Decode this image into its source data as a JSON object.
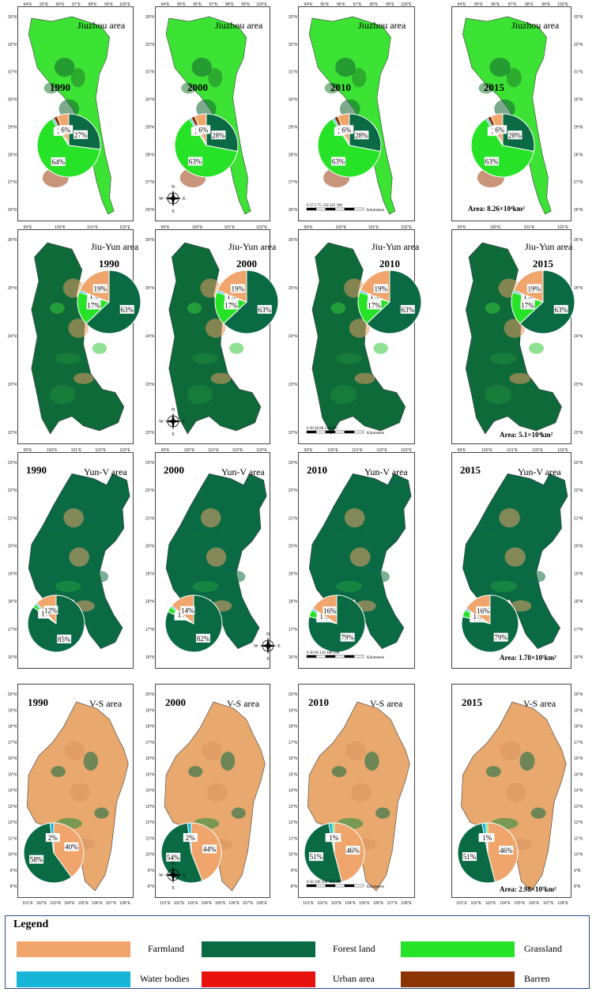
{
  "colors": {
    "Farmland": "#efa56b",
    "Forest land": "#096a44",
    "Grassland": "#27e327",
    "Water bodies": "#17b5d7",
    "Urban area": "#e8130f",
    "Barren": "#8b3505"
  },
  "regions": [
    {
      "name": "Jiuzhou area",
      "area_text": "Area: 8.26×10⁴km²",
      "lon_ticks": [
        "94°E",
        "95°E",
        "96°E",
        "97°E",
        "98°E",
        "99°E",
        "100°E"
      ],
      "lat_ticks": [
        "33°N",
        "32°N",
        "31°N",
        "30°N",
        "29°N",
        "28°N",
        "27°N",
        "26°N"
      ],
      "bottom_ticks": [],
      "map_colors": [
        "#3ce334",
        "#1f7d2a",
        "#12632f",
        "#9b3d0d"
      ],
      "panels": [
        {
          "year": "1990",
          "slices": [
            {
              "class": "Forest land",
              "pct": 27,
              "label": "27%"
            },
            {
              "class": "Grassland",
              "pct": 64,
              "label": "64%"
            },
            {
              "class": "Water bodies",
              "pct": 1,
              "label": "1%"
            },
            {
              "class": "Urban area",
              "pct": 0,
              "label": ""
            },
            {
              "class": "Barren",
              "pct": 2,
              "label": "2%"
            },
            {
              "class": "Farmland",
              "pct": 6,
              "label": "6%"
            }
          ]
        },
        {
          "year": "2000",
          "slices": [
            {
              "class": "Forest land",
              "pct": 28,
              "label": "28%"
            },
            {
              "class": "Grassland",
              "pct": 63,
              "label": "63%"
            },
            {
              "class": "Water bodies",
              "pct": 1,
              "label": "1%"
            },
            {
              "class": "Urban area",
              "pct": 0,
              "label": ""
            },
            {
              "class": "Barren",
              "pct": 2,
              "label": "2%"
            },
            {
              "class": "Farmland",
              "pct": 6,
              "label": "6%"
            }
          ]
        },
        {
          "year": "2010",
          "slices": [
            {
              "class": "Forest land",
              "pct": 28,
              "label": "28%"
            },
            {
              "class": "Grassland",
              "pct": 63,
              "label": "63%"
            },
            {
              "class": "Water bodies",
              "pct": 1,
              "label": "1%"
            },
            {
              "class": "Urban area",
              "pct": 0,
              "label": ""
            },
            {
              "class": "Barren",
              "pct": 2,
              "label": "2%"
            },
            {
              "class": "Farmland",
              "pct": 6,
              "label": "6%"
            }
          ]
        },
        {
          "year": "2015",
          "slices": [
            {
              "class": "Forest land",
              "pct": 28,
              "label": "28%"
            },
            {
              "class": "Grassland",
              "pct": 63,
              "label": "63%"
            },
            {
              "class": "Water bodies",
              "pct": 1,
              "label": "1%"
            },
            {
              "class": "Urban area",
              "pct": 0,
              "label": ""
            },
            {
              "class": "Barren",
              "pct": 2,
              "label": "2%"
            },
            {
              "class": "Farmland",
              "pct": 6,
              "label": "6%"
            }
          ]
        }
      ],
      "scale_bar": {
        "ticks": "0  37.5 75      150     225     300",
        "unit": "Kilometers"
      }
    },
    {
      "name": "Jiu-Yun area",
      "area_text": "Area: 5.1×10⁴km²",
      "lon_ticks": [
        "99°E",
        "100°E",
        "101°E",
        "102°E"
      ],
      "lat_ticks": [
        "26°N",
        "25°N",
        "24°N",
        "23°N",
        "22°N"
      ],
      "bottom_ticks": [],
      "map_colors": [
        "#0f6a3a",
        "#34c93a",
        "#e39a63",
        "#1d8a3a"
      ],
      "panels": [
        {
          "year": "1990",
          "slices": [
            {
              "class": "Forest land",
              "pct": 63,
              "label": "63%"
            },
            {
              "class": "Grassland",
              "pct": 17,
              "label": "17%"
            },
            {
              "class": "Water bodies",
              "pct": 1,
              "label": "1%"
            },
            {
              "class": "Farmland",
              "pct": 19,
              "label": "19%"
            }
          ]
        },
        {
          "year": "2000",
          "slices": [
            {
              "class": "Forest land",
              "pct": 63,
              "label": "63%"
            },
            {
              "class": "Grassland",
              "pct": 17,
              "label": "17%"
            },
            {
              "class": "Water bodies",
              "pct": 1,
              "label": "1%"
            },
            {
              "class": "Farmland",
              "pct": 19,
              "label": "19%"
            }
          ]
        },
        {
          "year": "2010",
          "slices": [
            {
              "class": "Forest land",
              "pct": 63,
              "label": "63%"
            },
            {
              "class": "Grassland",
              "pct": 17,
              "label": "17%"
            },
            {
              "class": "Water bodies",
              "pct": 1,
              "label": "1%"
            },
            {
              "class": "Farmland",
              "pct": 19,
              "label": "19%"
            }
          ]
        },
        {
          "year": "2015",
          "slices": [
            {
              "class": "Forest land",
              "pct": 63,
              "label": "63%"
            },
            {
              "class": "Grassland",
              "pct": 17,
              "label": "17%"
            },
            {
              "class": "Water bodies",
              "pct": 1,
              "label": "1%"
            },
            {
              "class": "Farmland",
              "pct": 19,
              "label": "19%"
            }
          ]
        }
      ],
      "scale_bar": {
        "ticks": "0 20 40     80     120     160",
        "unit": "Kilometers"
      }
    },
    {
      "name": "Yun-V area",
      "area_text": "Area: 1.78×10⁵km²",
      "lon_ticks": [
        "99°E",
        "100°E",
        "101°E",
        "102°E",
        "103°E"
      ],
      "lat_ticks": [
        "23°N",
        "22°N",
        "21°N",
        "20°N",
        "19°N",
        "18°N",
        "17°N",
        "16°N"
      ],
      "bottom_ticks": [],
      "map_colors": [
        "#096a44",
        "#0d6e3f",
        "#e8a06a",
        "#1f9a3f"
      ],
      "panels": [
        {
          "year": "1990",
          "slices": [
            {
              "class": "Forest land",
              "pct": 85,
              "label": "85%"
            },
            {
              "class": "Grassland",
              "pct": 2,
              "label": "2%"
            },
            {
              "class": "Water bodies",
              "pct": 1,
              "label": "1%"
            },
            {
              "class": "Farmland",
              "pct": 12,
              "label": "12%"
            }
          ]
        },
        {
          "year": "2000",
          "slices": [
            {
              "class": "Forest land",
              "pct": 82,
              "label": "82%"
            },
            {
              "class": "Grassland",
              "pct": 3,
              "label": "3%"
            },
            {
              "class": "Water bodies",
              "pct": 1,
              "label": "1%"
            },
            {
              "class": "Farmland",
              "pct": 14,
              "label": "14%"
            }
          ]
        },
        {
          "year": "2010",
          "slices": [
            {
              "class": "Forest land",
              "pct": 79,
              "label": "79%"
            },
            {
              "class": "Grassland",
              "pct": 4,
              "label": "4%"
            },
            {
              "class": "Water bodies",
              "pct": 1,
              "label": "1%"
            },
            {
              "class": "Farmland",
              "pct": 16,
              "label": "16%"
            }
          ]
        },
        {
          "year": "2015",
          "slices": [
            {
              "class": "Forest land",
              "pct": 79,
              "label": "79%"
            },
            {
              "class": "Grassland",
              "pct": 4,
              "label": "4%"
            },
            {
              "class": "Water bodies",
              "pct": 1,
              "label": "1%"
            },
            {
              "class": "Farmland",
              "pct": 16,
              "label": "16%"
            }
          ]
        }
      ],
      "scale_bar": {
        "ticks": "0 30 60     120     180     240",
        "unit": "Kilometers"
      }
    },
    {
      "name": "V-S area",
      "area_text": "Area: 2.98×10⁵km²",
      "lon_ticks": [],
      "lat_ticks": [
        "20°N",
        "19°N",
        "18°N",
        "17°N",
        "16°N",
        "15°N",
        "14°N",
        "13°N",
        "12°N",
        "11°N",
        "10°N",
        "9°N",
        "8°N"
      ],
      "bottom_ticks": [
        "101°E",
        "102°E",
        "103°E",
        "104°E",
        "105°E",
        "106°E",
        "107°E",
        "108°E"
      ],
      "map_colors": [
        "#e8a86e",
        "#096a44",
        "#d89560",
        "#1d8a3a"
      ],
      "panels": [
        {
          "year": "1990",
          "slices": [
            {
              "class": "Farmland",
              "pct": 40,
              "label": "40%"
            },
            {
              "class": "Forest land",
              "pct": 58,
              "label": "58%"
            },
            {
              "class": "Water bodies",
              "pct": 2,
              "label": "2%"
            }
          ]
        },
        {
          "year": "2000",
          "slices": [
            {
              "class": "Farmland",
              "pct": 44,
              "label": "44%"
            },
            {
              "class": "Forest land",
              "pct": 54,
              "label": "54%"
            },
            {
              "class": "Water bodies",
              "pct": 2,
              "label": "2%"
            }
          ]
        },
        {
          "year": "2010",
          "slices": [
            {
              "class": "Farmland",
              "pct": 46,
              "label": "46%"
            },
            {
              "class": "Forest land",
              "pct": 51,
              "label": "51%"
            },
            {
              "class": "Water bodies",
              "pct": 2,
              "label": "2%"
            },
            {
              "class": "Grassland",
              "pct": 1,
              "label": "1%"
            }
          ]
        },
        {
          "year": "2015",
          "slices": [
            {
              "class": "Farmland",
              "pct": 46,
              "label": "46%"
            },
            {
              "class": "Forest land",
              "pct": 51,
              "label": "51%"
            },
            {
              "class": "Water bodies",
              "pct": 2,
              "label": "2%"
            },
            {
              "class": "Grassland",
              "pct": 1,
              "label": "1%"
            }
          ]
        }
      ],
      "scale_bar": {
        "ticks": "0  50 100    200     300    400",
        "unit": "Kilometers"
      }
    }
  ],
  "compass": {
    "n": "N",
    "s": "S",
    "e": "E",
    "w": "W"
  },
  "legend": {
    "title": "Legend",
    "items": [
      {
        "label": "Farmland",
        "class": "Farmland"
      },
      {
        "label": "Forest land",
        "class": "Forest land"
      },
      {
        "label": "Grassland",
        "class": "Grassland"
      },
      {
        "label": "Water bodies",
        "class": "Water bodies"
      },
      {
        "label": "Urban area",
        "class": "Urban area"
      },
      {
        "label": "Barren",
        "class": "Barren"
      }
    ]
  }
}
